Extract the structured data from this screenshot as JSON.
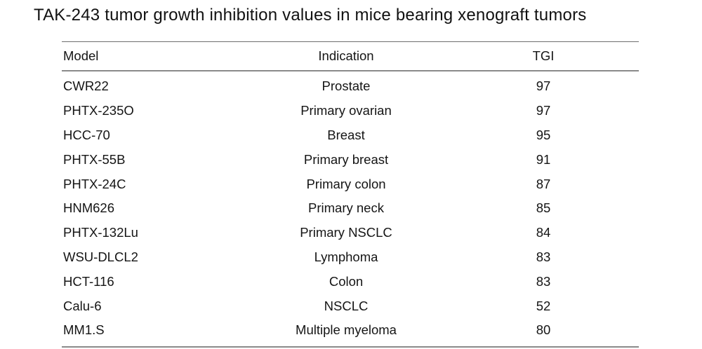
{
  "title": "TAK-243 tumor growth inhibition values in mice bearing xenograft tumors",
  "table": {
    "columns": {
      "model": "Model",
      "indication": "Indication",
      "tgi": "TGI"
    },
    "rows": [
      {
        "model": "CWR22",
        "indication": "Prostate",
        "tgi": "97"
      },
      {
        "model": "PHTX-235O",
        "indication": "Primary ovarian",
        "tgi": "97"
      },
      {
        "model": "HCC-70",
        "indication": "Breast",
        "tgi": "95"
      },
      {
        "model": "PHTX-55B",
        "indication": "Primary breast",
        "tgi": "91"
      },
      {
        "model": "PHTX-24C",
        "indication": "Primary colon",
        "tgi": "87"
      },
      {
        "model": "HNM626",
        "indication": "Primary neck",
        "tgi": "85"
      },
      {
        "model": "PHTX-132Lu",
        "indication": "Primary NSCLC",
        "tgi": "84"
      },
      {
        "model": "WSU-DLCL2",
        "indication": "Lymphoma",
        "tgi": "83"
      },
      {
        "model": "HCT-116",
        "indication": "Colon",
        "tgi": "83"
      },
      {
        "model": "Calu-6",
        "indication": "NSCLC",
        "tgi": "52"
      },
      {
        "model": "MM1.S",
        "indication": "Multiple myeloma",
        "tgi": "80"
      }
    ]
  },
  "chart_data": {
    "type": "table",
    "title": "TAK-243 tumor growth inhibition values in mice bearing xenograft tumors",
    "categories": [
      "CWR22",
      "PHTX-235O",
      "HCC-70",
      "PHTX-55B",
      "PHTX-24C",
      "HNM626",
      "PHTX-132Lu",
      "WSU-DLCL2",
      "HCT-116",
      "Calu-6",
      "MM1.S"
    ],
    "series": [
      {
        "name": "Indication",
        "values": [
          "Prostate",
          "Primary ovarian",
          "Breast",
          "Primary breast",
          "Primary colon",
          "Primary neck",
          "Primary NSCLC",
          "Lymphoma",
          "Colon",
          "NSCLC",
          "Multiple myeloma"
        ]
      },
      {
        "name": "TGI",
        "values": [
          97,
          97,
          95,
          91,
          87,
          85,
          84,
          83,
          83,
          52,
          80
        ]
      }
    ]
  },
  "colors": {
    "background": "#ffffff",
    "text": "#111111",
    "rule": "#8a8a8a"
  }
}
